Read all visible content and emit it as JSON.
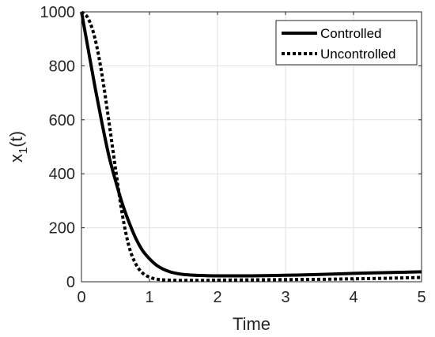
{
  "chart_data": {
    "type": "line",
    "title": "",
    "xlabel": "Time",
    "ylabel_main": "x",
    "ylabel_sub": "1",
    "ylabel_suffix": "(t)",
    "xlim": [
      0,
      5
    ],
    "ylim": [
      0,
      1000
    ],
    "xticks": [
      0,
      1,
      2,
      3,
      4,
      5
    ],
    "yticks": [
      0,
      200,
      400,
      600,
      800,
      1000
    ],
    "grid": true,
    "legend_position": "top-right",
    "series": [
      {
        "name": "Controlled",
        "style": "solid",
        "color": "#000000",
        "x": [
          0,
          0.1,
          0.2,
          0.3,
          0.4,
          0.5,
          0.6,
          0.7,
          0.8,
          0.9,
          1.0,
          1.1,
          1.2,
          1.3,
          1.4,
          1.5,
          1.6,
          1.8,
          2.0,
          2.5,
          3.0,
          3.5,
          4.0,
          4.5,
          5.0
        ],
        "y": [
          1000,
          860,
          720,
          590,
          470,
          375,
          290,
          220,
          160,
          115,
          85,
          62,
          47,
          37,
          31,
          27,
          25,
          23,
          22,
          22,
          24,
          27,
          31,
          34,
          37
        ]
      },
      {
        "name": "Uncontrolled",
        "style": "dotted",
        "color": "#000000",
        "x": [
          0,
          0.1,
          0.2,
          0.3,
          0.4,
          0.5,
          0.6,
          0.7,
          0.8,
          0.9,
          1.0,
          1.1,
          1.2,
          1.4,
          1.6,
          1.8,
          2.0,
          2.5,
          3.0,
          3.5,
          4.0,
          4.5,
          5.0
        ],
        "y": [
          1000,
          975,
          900,
          770,
          600,
          420,
          250,
          130,
          65,
          32,
          17,
          10,
          7,
          5,
          5,
          5,
          6,
          7,
          8,
          9,
          11,
          13,
          16
        ]
      }
    ]
  }
}
